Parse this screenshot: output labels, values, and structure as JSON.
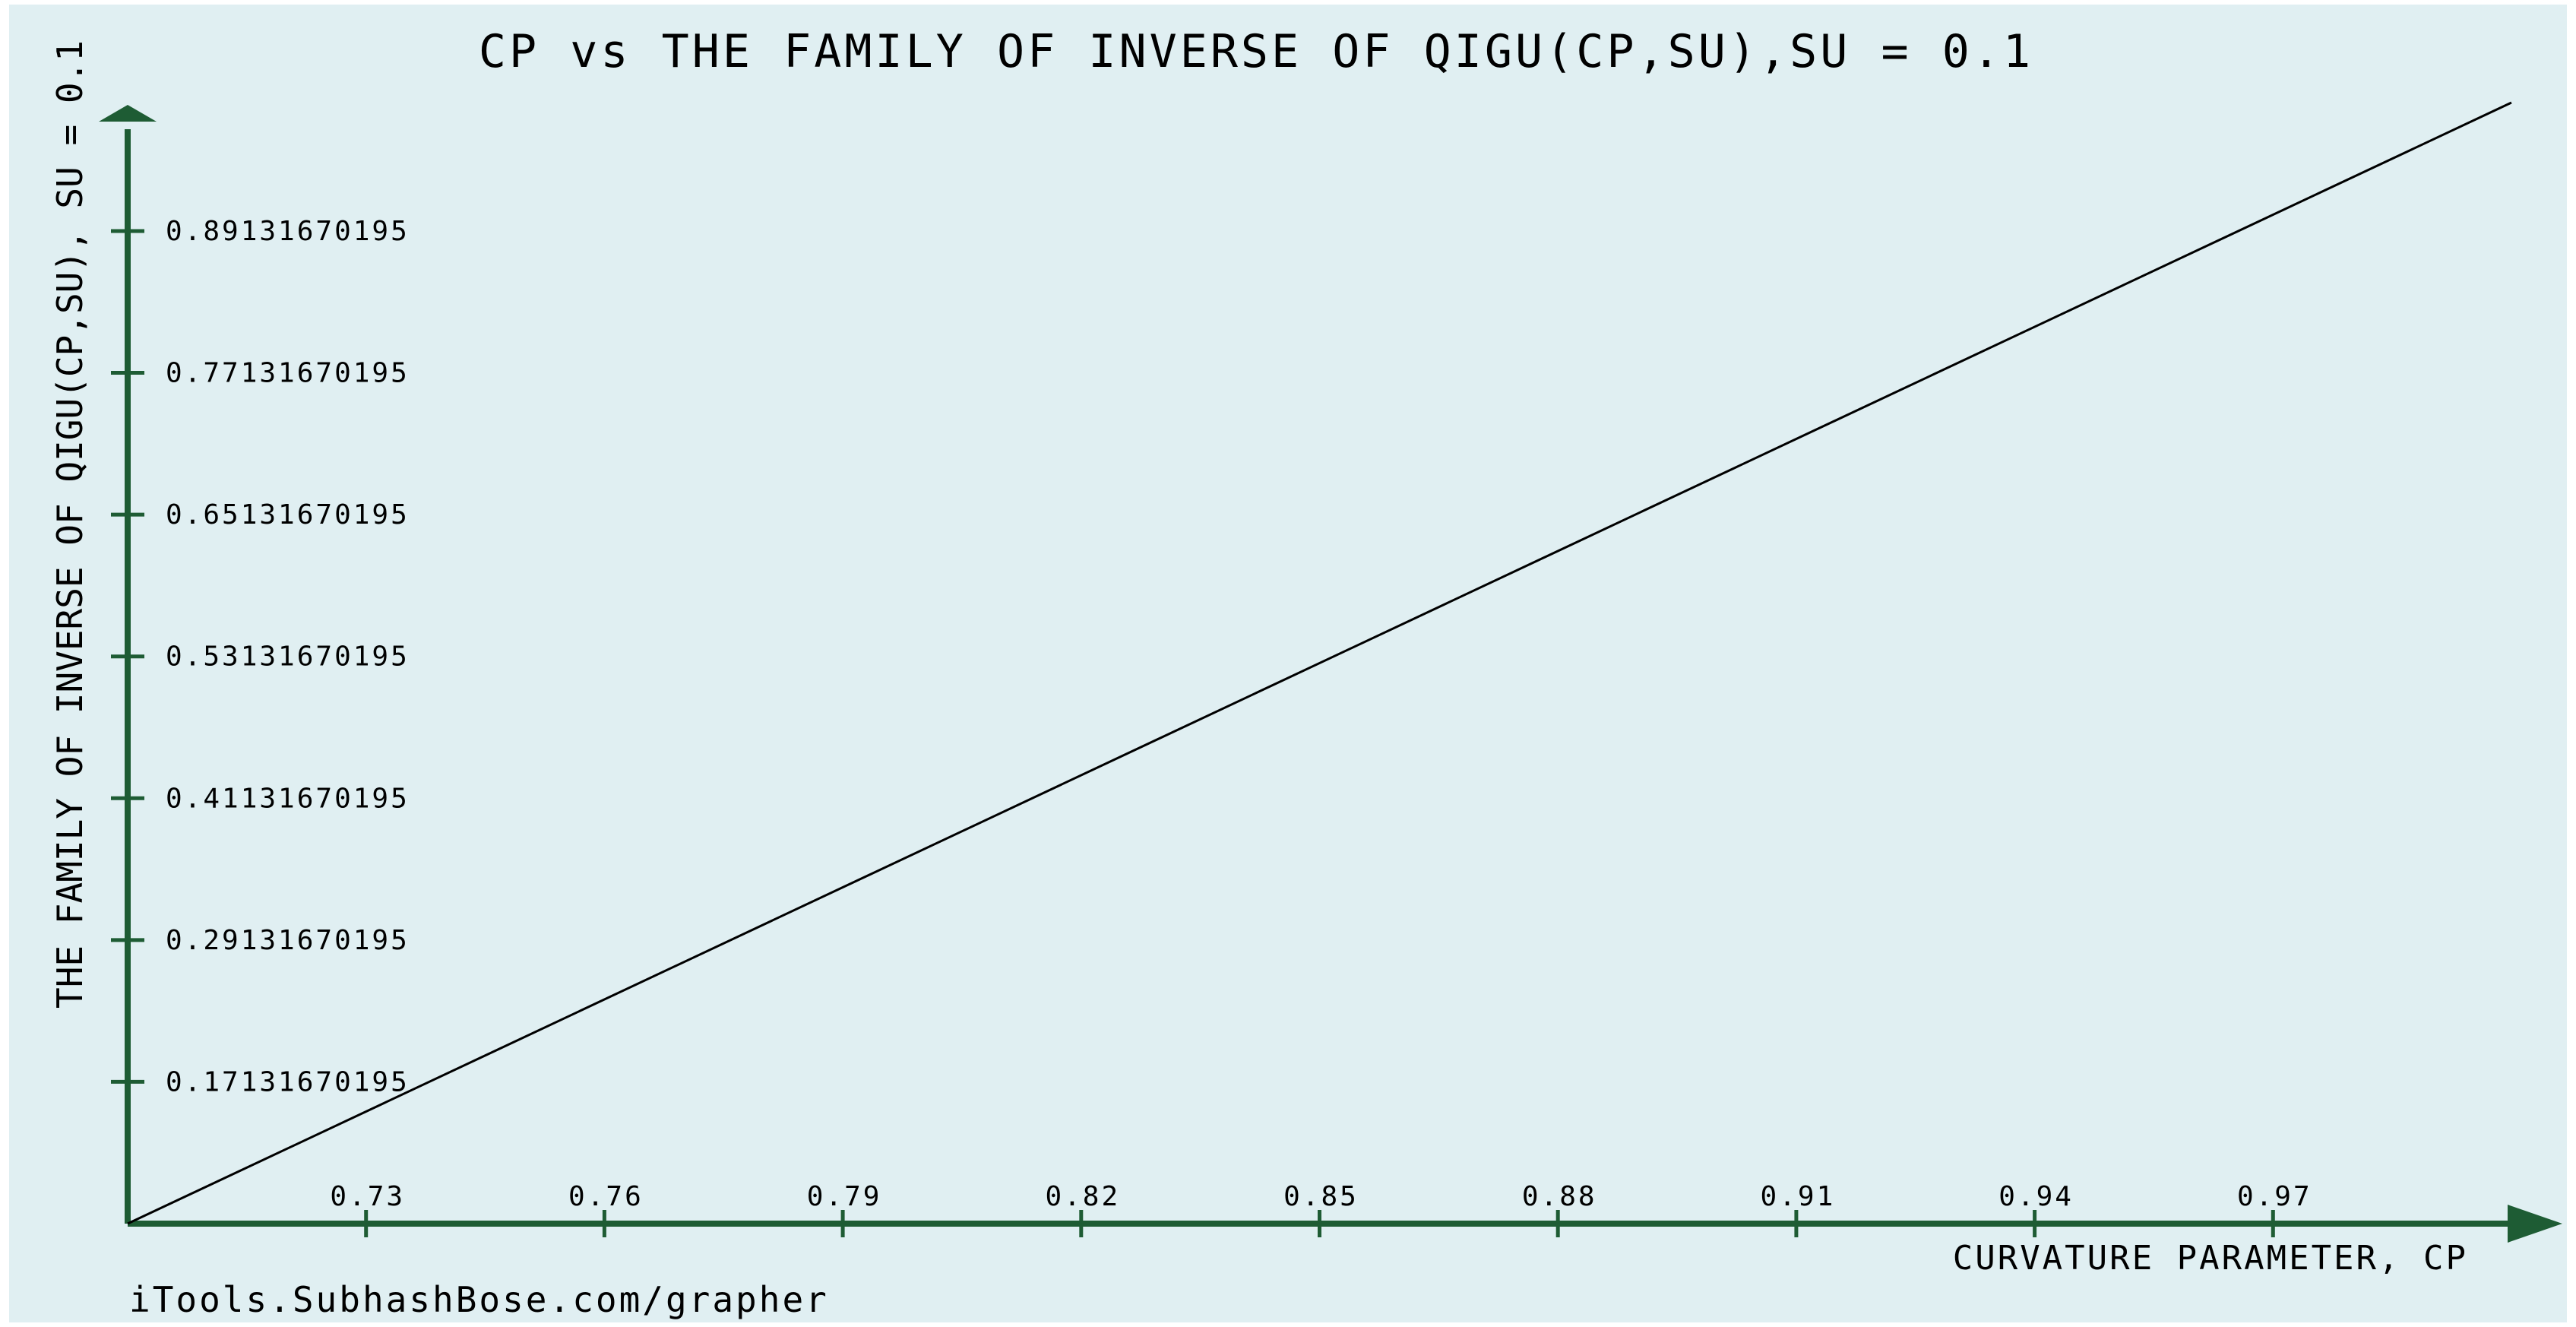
{
  "colors": {
    "background": "#e0eff2",
    "axis": "#1e5c34",
    "line": "#000000",
    "text": "#000000"
  },
  "footer_text": "iTools.SubhashBose.com/grapher",
  "chart_data": {
    "type": "line",
    "title": "CP vs THE FAMILY OF INVERSE OF QIGU(CP,SU),SU = 0.1",
    "xlabel": "CURVATURE PARAMETER, CP",
    "ylabel": "THE FAMILY OF  INVERSE OF QIGU(CP,SU), SU = 0.1",
    "xlim": [
      0.7,
      1.0
    ],
    "ylim": [
      0.05131670195,
      1.0
    ],
    "x_ticks": [
      0.73,
      0.76,
      0.79,
      0.82,
      0.85,
      0.88,
      0.91,
      0.94,
      0.97
    ],
    "x_tick_labels": [
      "0.73",
      "0.76",
      "0.79",
      "0.82",
      "0.85",
      "0.88",
      "0.91",
      "0.94",
      "0.97"
    ],
    "y_ticks": [
      0.17131670195,
      0.29131670195,
      0.41131670195,
      0.53131670195,
      0.65131670195,
      0.77131670195,
      0.89131670195
    ],
    "y_tick_labels": [
      "0.17131670195",
      "0.29131670195",
      "0.41131670195",
      "0.53131670195",
      "0.65131670195",
      "0.77131670195",
      "0.89131670195"
    ],
    "grid": false,
    "series": [
      {
        "x": [
          0.7,
          1.0
        ],
        "y": [
          0.05131670195,
          1.0
        ]
      }
    ]
  }
}
